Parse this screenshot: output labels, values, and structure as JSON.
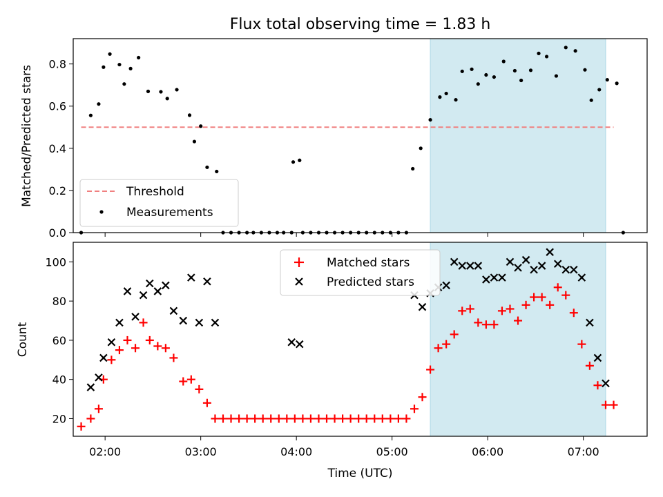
{
  "figure": {
    "title": "Flux total observing time = 1.83 h"
  },
  "chart_data": [
    {
      "type": "scatter",
      "panel": "top",
      "ylabel": "Matched/Predicted stars",
      "xlabel": "",
      "xlim": [
        "01:40",
        "07:40"
      ],
      "ylim": [
        0,
        0.92
      ],
      "yticks": [
        0.0,
        0.2,
        0.4,
        0.6,
        0.8
      ],
      "yticklabels": [
        "0.0",
        "0.2",
        "0.4",
        "0.6",
        "0.8"
      ],
      "xticks": [
        "02:00",
        "03:00",
        "04:00",
        "05:00",
        "06:00",
        "07:00"
      ],
      "show_xticklabels": false,
      "grid": false,
      "shaded_region": {
        "x": [
          "05:24",
          "07:14"
        ],
        "color": "#add8e6"
      },
      "legend": {
        "position": "lower left",
        "entries": [
          "Threshold",
          "Measurements"
        ]
      },
      "threshold": {
        "name": "Threshold",
        "value": 0.5,
        "x": [
          "01:45",
          "07:19"
        ],
        "color": "#f08080",
        "style": "dashed"
      },
      "series": [
        {
          "name": "Measurements",
          "color": "#000000",
          "marker": "dot",
          "points": [
            [
              "01:45",
              0.0
            ],
            [
              "01:51",
              0.556
            ],
            [
              "01:56",
              0.61
            ],
            [
              "01:59",
              0.785
            ],
            [
              "02:03",
              0.847
            ],
            [
              "02:09",
              0.797
            ],
            [
              "02:12",
              0.705
            ],
            [
              "02:16",
              0.778
            ],
            [
              "02:21",
              0.83
            ],
            [
              "02:27",
              0.67
            ],
            [
              "02:35",
              0.668
            ],
            [
              "02:39",
              0.636
            ],
            [
              "02:45",
              0.678
            ],
            [
              "02:53",
              0.557
            ],
            [
              "02:56",
              0.432
            ],
            [
              "03:00",
              0.505
            ],
            [
              "03:04",
              0.31
            ],
            [
              "03:10",
              0.29
            ],
            [
              "03:14",
              0.0
            ],
            [
              "03:19",
              0.0
            ],
            [
              "03:24",
              0.0
            ],
            [
              "03:29",
              0.0
            ],
            [
              "03:33",
              0.0
            ],
            [
              "03:38",
              0.0
            ],
            [
              "03:43",
              0.0
            ],
            [
              "03:48",
              0.0
            ],
            [
              "03:52",
              0.0
            ],
            [
              "03:57",
              0.0
            ],
            [
              "03:58",
              0.335
            ],
            [
              "04:02",
              0.343
            ],
            [
              "04:04",
              0.0
            ],
            [
              "04:09",
              0.0
            ],
            [
              "04:14",
              0.0
            ],
            [
              "04:19",
              0.0
            ],
            [
              "04:24",
              0.0
            ],
            [
              "04:29",
              0.0
            ],
            [
              "04:34",
              0.0
            ],
            [
              "04:39",
              0.0
            ],
            [
              "04:44",
              0.0
            ],
            [
              "04:49",
              0.0
            ],
            [
              "04:54",
              0.0
            ],
            [
              "04:59",
              0.0
            ],
            [
              "05:04",
              0.0
            ],
            [
              "05:09",
              0.0
            ],
            [
              "05:13",
              0.303
            ],
            [
              "05:18",
              0.4
            ],
            [
              "05:24",
              0.535
            ],
            [
              "05:30",
              0.643
            ],
            [
              "05:34",
              0.66
            ],
            [
              "05:40",
              0.63
            ],
            [
              "05:44",
              0.765
            ],
            [
              "05:50",
              0.775
            ],
            [
              "05:54",
              0.705
            ],
            [
              "05:59",
              0.748
            ],
            [
              "06:04",
              0.738
            ],
            [
              "06:10",
              0.812
            ],
            [
              "06:17",
              0.768
            ],
            [
              "06:21",
              0.722
            ],
            [
              "06:27",
              0.77
            ],
            [
              "06:32",
              0.85
            ],
            [
              "06:37",
              0.835
            ],
            [
              "06:43",
              0.743
            ],
            [
              "06:49",
              0.878
            ],
            [
              "06:55",
              0.862
            ],
            [
              "07:01",
              0.772
            ],
            [
              "07:05",
              0.628
            ],
            [
              "07:10",
              0.678
            ],
            [
              "07:15",
              0.725
            ],
            [
              "07:21",
              0.708
            ],
            [
              "07:25",
              0.0
            ]
          ]
        }
      ]
    },
    {
      "type": "scatter",
      "panel": "bottom",
      "xlabel": "Time (UTC)",
      "ylabel": "Count",
      "xlim": [
        "01:40",
        "07:40"
      ],
      "ylim": [
        11,
        110
      ],
      "yticks": [
        20,
        40,
        60,
        80,
        100
      ],
      "yticklabels": [
        "20",
        "40",
        "60",
        "80",
        "100"
      ],
      "xticks": [
        "02:00",
        "03:00",
        "04:00",
        "05:00",
        "06:00",
        "07:00"
      ],
      "xticklabels": [
        "02:00",
        "03:00",
        "04:00",
        "05:00",
        "06:00",
        "07:00"
      ],
      "grid": false,
      "shaded_region": {
        "x": [
          "05:24",
          "07:14"
        ],
        "color": "#add8e6"
      },
      "legend": {
        "position": "upper center",
        "entries": [
          "Matched stars",
          "Predicted stars"
        ]
      },
      "series": [
        {
          "name": "Matched stars",
          "color": "#ff0000",
          "marker": "plus",
          "points": [
            [
              "01:45",
              16
            ],
            [
              "01:51",
              20
            ],
            [
              "01:56",
              25
            ],
            [
              "01:59",
              40
            ],
            [
              "02:04",
              50
            ],
            [
              "02:09",
              55
            ],
            [
              "02:14",
              60
            ],
            [
              "02:19",
              56
            ],
            [
              "02:24",
              69
            ],
            [
              "02:28",
              60
            ],
            [
              "02:33",
              57
            ],
            [
              "02:38",
              56
            ],
            [
              "02:43",
              51
            ],
            [
              "02:49",
              39
            ],
            [
              "02:54",
              40
            ],
            [
              "02:59",
              35
            ],
            [
              "03:04",
              28
            ],
            [
              "03:09",
              20
            ],
            [
              "03:14",
              20
            ],
            [
              "03:19",
              20
            ],
            [
              "03:24",
              20
            ],
            [
              "03:29",
              20
            ],
            [
              "03:34",
              20
            ],
            [
              "03:39",
              20
            ],
            [
              "03:44",
              20
            ],
            [
              "03:49",
              20
            ],
            [
              "03:54",
              20
            ],
            [
              "03:59",
              20
            ],
            [
              "04:04",
              20
            ],
            [
              "04:09",
              20
            ],
            [
              "04:14",
              20
            ],
            [
              "04:19",
              20
            ],
            [
              "04:24",
              20
            ],
            [
              "04:29",
              20
            ],
            [
              "04:34",
              20
            ],
            [
              "04:39",
              20
            ],
            [
              "04:44",
              20
            ],
            [
              "04:49",
              20
            ],
            [
              "04:54",
              20
            ],
            [
              "04:59",
              20
            ],
            [
              "05:04",
              20
            ],
            [
              "05:09",
              20
            ],
            [
              "05:14",
              25
            ],
            [
              "05:19",
              31
            ],
            [
              "05:24",
              45
            ],
            [
              "05:29",
              56
            ],
            [
              "05:34",
              58
            ],
            [
              "05:39",
              63
            ],
            [
              "05:44",
              75
            ],
            [
              "05:49",
              76
            ],
            [
              "05:54",
              69
            ],
            [
              "05:59",
              68
            ],
            [
              "06:04",
              68
            ],
            [
              "06:09",
              75
            ],
            [
              "06:14",
              76
            ],
            [
              "06:19",
              70
            ],
            [
              "06:24",
              78
            ],
            [
              "06:29",
              82
            ],
            [
              "06:34",
              82
            ],
            [
              "06:39",
              78
            ],
            [
              "06:44",
              87
            ],
            [
              "06:49",
              83
            ],
            [
              "06:54",
              74
            ],
            [
              "06:59",
              58
            ],
            [
              "07:04",
              47
            ],
            [
              "07:09",
              37
            ],
            [
              "07:14",
              27
            ],
            [
              "07:19",
              27
            ]
          ]
        },
        {
          "name": "Predicted stars",
          "color": "#000000",
          "marker": "x",
          "points": [
            [
              "01:51",
              36
            ],
            [
              "01:56",
              41
            ],
            [
              "01:59",
              51
            ],
            [
              "02:04",
              59
            ],
            [
              "02:09",
              69
            ],
            [
              "02:14",
              85
            ],
            [
              "02:19",
              72
            ],
            [
              "02:24",
              83
            ],
            [
              "02:28",
              89
            ],
            [
              "02:33",
              85
            ],
            [
              "02:38",
              88
            ],
            [
              "02:43",
              75
            ],
            [
              "02:49",
              70
            ],
            [
              "02:54",
              92
            ],
            [
              "02:59",
              69
            ],
            [
              "03:04",
              90
            ],
            [
              "03:09",
              69
            ],
            [
              "03:57",
              59
            ],
            [
              "04:02",
              58
            ],
            [
              "05:14",
              83
            ],
            [
              "05:19",
              77
            ],
            [
              "05:24",
              84
            ],
            [
              "05:29",
              87
            ],
            [
              "05:34",
              88
            ],
            [
              "05:39",
              100
            ],
            [
              "05:44",
              98
            ],
            [
              "05:49",
              98
            ],
            [
              "05:54",
              98
            ],
            [
              "05:59",
              91
            ],
            [
              "06:04",
              92
            ],
            [
              "06:09",
              92
            ],
            [
              "06:14",
              100
            ],
            [
              "06:19",
              97
            ],
            [
              "06:24",
              101
            ],
            [
              "06:29",
              96
            ],
            [
              "06:34",
              98
            ],
            [
              "06:39",
              105
            ],
            [
              "06:44",
              99
            ],
            [
              "06:49",
              96
            ],
            [
              "06:54",
              96
            ],
            [
              "06:59",
              92
            ],
            [
              "07:04",
              69
            ],
            [
              "07:09",
              51
            ],
            [
              "07:14",
              38
            ]
          ]
        }
      ]
    }
  ]
}
